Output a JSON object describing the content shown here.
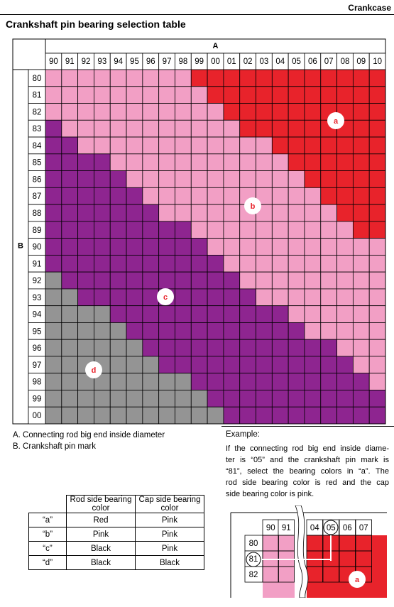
{
  "header": {
    "section": "Crankcase",
    "title": "Crankshaft pin bearing selection table"
  },
  "selection_table": {
    "axis_a": "A",
    "axis_b": "B",
    "columns": [
      "90",
      "91",
      "92",
      "93",
      "94",
      "95",
      "96",
      "97",
      "98",
      "99",
      "00",
      "01",
      "02",
      "03",
      "04",
      "05",
      "06",
      "07",
      "08",
      "09",
      "10"
    ],
    "rows": [
      "80",
      "81",
      "82",
      "83",
      "84",
      "85",
      "86",
      "87",
      "88",
      "89",
      "90",
      "91",
      "92",
      "93",
      "94",
      "95",
      "96",
      "97",
      "98",
      "99",
      "00"
    ],
    "regions": [
      "a",
      "b",
      "c",
      "d"
    ]
  },
  "notes": [
    "A. Connecting rod big end inside diameter",
    "B. Crankshaft pin mark"
  ],
  "example": {
    "title": "Example:",
    "lines": [
      "If the connecting rod big end inside diame-",
      "ter is “05” and the crankshaft pin mark is",
      "“81”, select the bearing colors in “a”. The",
      "rod side bearing color is red and the cap",
      "side bearing color is pink."
    ]
  },
  "color_table": {
    "headers": [
      "Rod side bearing color",
      "Cap side bearing color"
    ],
    "rows": [
      [
        "“a”",
        "Red",
        "Pink"
      ],
      [
        "“b”",
        "Pink",
        "Pink"
      ],
      [
        "“c”",
        "Black",
        "Pink"
      ],
      [
        "“d”",
        "Black",
        "Black"
      ]
    ]
  },
  "inset": {
    "columns": [
      "90",
      "91",
      "04",
      "05",
      "06",
      "07"
    ],
    "rows": [
      "80",
      "81",
      "82"
    ],
    "region": "a"
  }
}
